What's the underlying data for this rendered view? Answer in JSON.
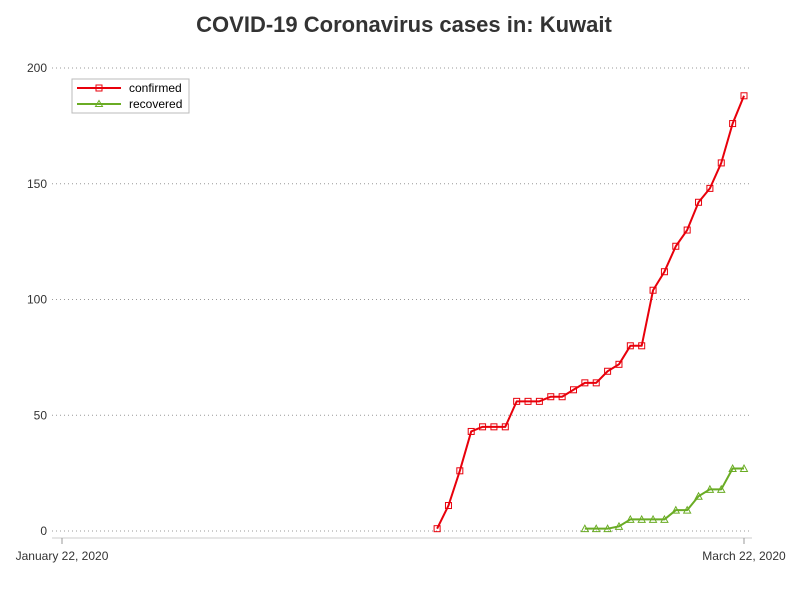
{
  "chart_data": {
    "type": "line",
    "title": "COVID-19 Coronavirus cases in: Kuwait",
    "xlabel": "",
    "ylabel": "",
    "x_axis": {
      "start_label": "January 22, 2020",
      "end_label": "March 22, 2020",
      "start_date": "2020-01-22",
      "end_date": "2020-03-22"
    },
    "ylim": [
      0,
      200
    ],
    "yticks": [
      0,
      50,
      100,
      150,
      200
    ],
    "grid": "horizontal dotted",
    "legend_position": "top-left",
    "series": [
      {
        "name": "confirmed",
        "color": "#e8000b",
        "marker": "square",
        "points": [
          [
            "2020-02-24",
            1
          ],
          [
            "2020-02-25",
            11
          ],
          [
            "2020-02-26",
            26
          ],
          [
            "2020-02-27",
            43
          ],
          [
            "2020-02-28",
            45
          ],
          [
            "2020-02-29",
            45
          ],
          [
            "2020-03-01",
            45
          ],
          [
            "2020-03-02",
            56
          ],
          [
            "2020-03-03",
            56
          ],
          [
            "2020-03-04",
            56
          ],
          [
            "2020-03-05",
            58
          ],
          [
            "2020-03-06",
            58
          ],
          [
            "2020-03-07",
            61
          ],
          [
            "2020-03-08",
            64
          ],
          [
            "2020-03-09",
            64
          ],
          [
            "2020-03-10",
            69
          ],
          [
            "2020-03-11",
            72
          ],
          [
            "2020-03-12",
            80
          ],
          [
            "2020-03-13",
            80
          ],
          [
            "2020-03-14",
            104
          ],
          [
            "2020-03-15",
            112
          ],
          [
            "2020-03-16",
            123
          ],
          [
            "2020-03-17",
            130
          ],
          [
            "2020-03-18",
            142
          ],
          [
            "2020-03-19",
            148
          ],
          [
            "2020-03-20",
            159
          ],
          [
            "2020-03-21",
            176
          ],
          [
            "2020-03-22",
            188
          ]
        ]
      },
      {
        "name": "recovered",
        "color": "#6aac24",
        "marker": "triangle",
        "points": [
          [
            "2020-03-08",
            1
          ],
          [
            "2020-03-09",
            1
          ],
          [
            "2020-03-10",
            1
          ],
          [
            "2020-03-11",
            2
          ],
          [
            "2020-03-12",
            5
          ],
          [
            "2020-03-13",
            5
          ],
          [
            "2020-03-14",
            5
          ],
          [
            "2020-03-15",
            5
          ],
          [
            "2020-03-16",
            9
          ],
          [
            "2020-03-17",
            9
          ],
          [
            "2020-03-18",
            15
          ],
          [
            "2020-03-19",
            18
          ],
          [
            "2020-03-20",
            18
          ],
          [
            "2020-03-21",
            27
          ],
          [
            "2020-03-22",
            27
          ]
        ]
      }
    ]
  }
}
